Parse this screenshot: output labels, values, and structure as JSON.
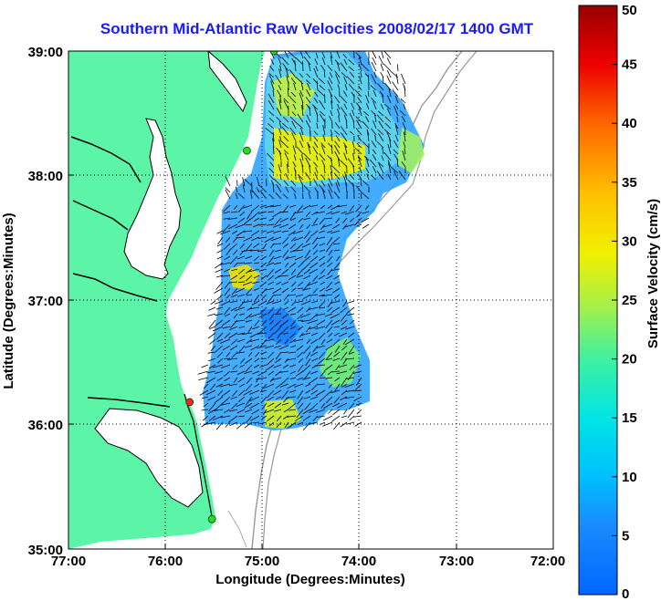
{
  "title": "Southern Mid-Atlantic Raw Velocities 2008/02/17 1400 GMT",
  "axes": {
    "xlabel": "Longitude (Degrees:Minutes)",
    "ylabel": "Latitude (Degrees:Minutes)",
    "xticks": [
      "77:00",
      "76:00",
      "75:00",
      "74:00",
      "73:00",
      "72:00"
    ],
    "yticks": [
      "39:00",
      "38:00",
      "37:00",
      "36:00",
      "35:00"
    ],
    "lon_range": [
      -77,
      -72
    ],
    "lat_range": [
      35,
      39
    ],
    "grid": "dotted"
  },
  "colorbar": {
    "label": "Surface Velocity (cm/s)",
    "ticks": [
      "0",
      "5",
      "10",
      "15",
      "20",
      "25",
      "30",
      "35",
      "40",
      "45",
      "50"
    ],
    "range": [
      0,
      50
    ],
    "colormap": "jet"
  },
  "colors": {
    "land": "#5cf5a8",
    "title": "#1a1aff",
    "coastline": "#000000",
    "bathymetry": "#999999"
  },
  "stations": [
    {
      "id": "station-1",
      "lon": -74.88,
      "lat": 39.0,
      "color": "#22dd22"
    },
    {
      "id": "station-2",
      "lon": -75.16,
      "lat": 38.2,
      "color": "#22dd22"
    },
    {
      "id": "station-3",
      "lon": -75.75,
      "lat": 36.18,
      "color": "#ff2222"
    },
    {
      "id": "station-4",
      "lon": -75.52,
      "lat": 35.24,
      "color": "#22dd22"
    }
  ]
}
